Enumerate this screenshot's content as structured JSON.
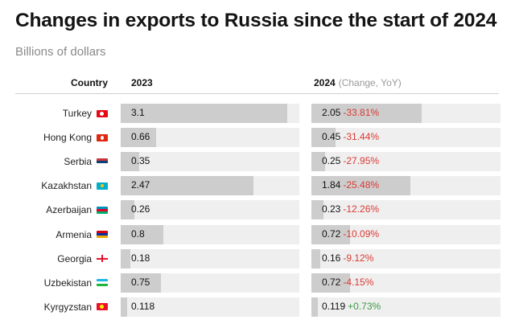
{
  "chart_data": {
    "type": "table",
    "title": "Changes in exports to Russia since the start of 2024",
    "subtitle": "Billions of dollars",
    "columns": {
      "country": "Country",
      "y2023": "2023",
      "y2024": "2024",
      "change_note": "(Change, YoY)"
    },
    "rows": [
      {
        "country": "Turkey",
        "flag": "turkey-flag-icon",
        "v2023": 3.1,
        "v2023_label": "3.1",
        "v2024": 2.05,
        "v2024_label": "2.05",
        "change": "-33.81%",
        "sign": "neg"
      },
      {
        "country": "Hong Kong",
        "flag": "hong-kong-flag-icon",
        "v2023": 0.66,
        "v2023_label": "0.66",
        "v2024": 0.45,
        "v2024_label": "0.45",
        "change": "-31.44%",
        "sign": "neg"
      },
      {
        "country": "Serbia",
        "flag": "serbia-flag-icon",
        "v2023": 0.35,
        "v2023_label": "0.35",
        "v2024": 0.25,
        "v2024_label": "0.25",
        "change": "-27.95%",
        "sign": "neg"
      },
      {
        "country": "Kazakhstan",
        "flag": "kazakhstan-flag-icon",
        "v2023": 2.47,
        "v2023_label": "2.47",
        "v2024": 1.84,
        "v2024_label": "1.84",
        "change": "-25.48%",
        "sign": "neg"
      },
      {
        "country": "Azerbaijan",
        "flag": "azerbaijan-flag-icon",
        "v2023": 0.26,
        "v2023_label": "0.26",
        "v2024": 0.23,
        "v2024_label": "0.23",
        "change": "-12.26%",
        "sign": "neg"
      },
      {
        "country": "Armenia",
        "flag": "armenia-flag-icon",
        "v2023": 0.8,
        "v2023_label": "0.8",
        "v2024": 0.72,
        "v2024_label": "0.72",
        "change": "-10.09%",
        "sign": "neg"
      },
      {
        "country": "Georgia",
        "flag": "georgia-flag-icon",
        "v2023": 0.18,
        "v2023_label": "0.18",
        "v2024": 0.16,
        "v2024_label": "0.16",
        "change": "-9.12%",
        "sign": "neg"
      },
      {
        "country": "Uzbekistan",
        "flag": "uzbekistan-flag-icon",
        "v2023": 0.75,
        "v2023_label": "0.75",
        "v2024": 0.72,
        "v2024_label": "0.72",
        "change": "-4.15%",
        "sign": "neg"
      },
      {
        "country": "Kyrgyzstan",
        "flag": "kyrgyzstan-flag-icon",
        "v2023": 0.118,
        "v2023_label": "0.118",
        "v2024": 0.119,
        "v2024_label": "0.119",
        "change": "+0.73%",
        "sign": "pos"
      }
    ],
    "colors": {
      "bar": "#cdcdcd",
      "track": "#efefef",
      "negative": "#d93a34",
      "positive": "#3c9a45"
    }
  }
}
